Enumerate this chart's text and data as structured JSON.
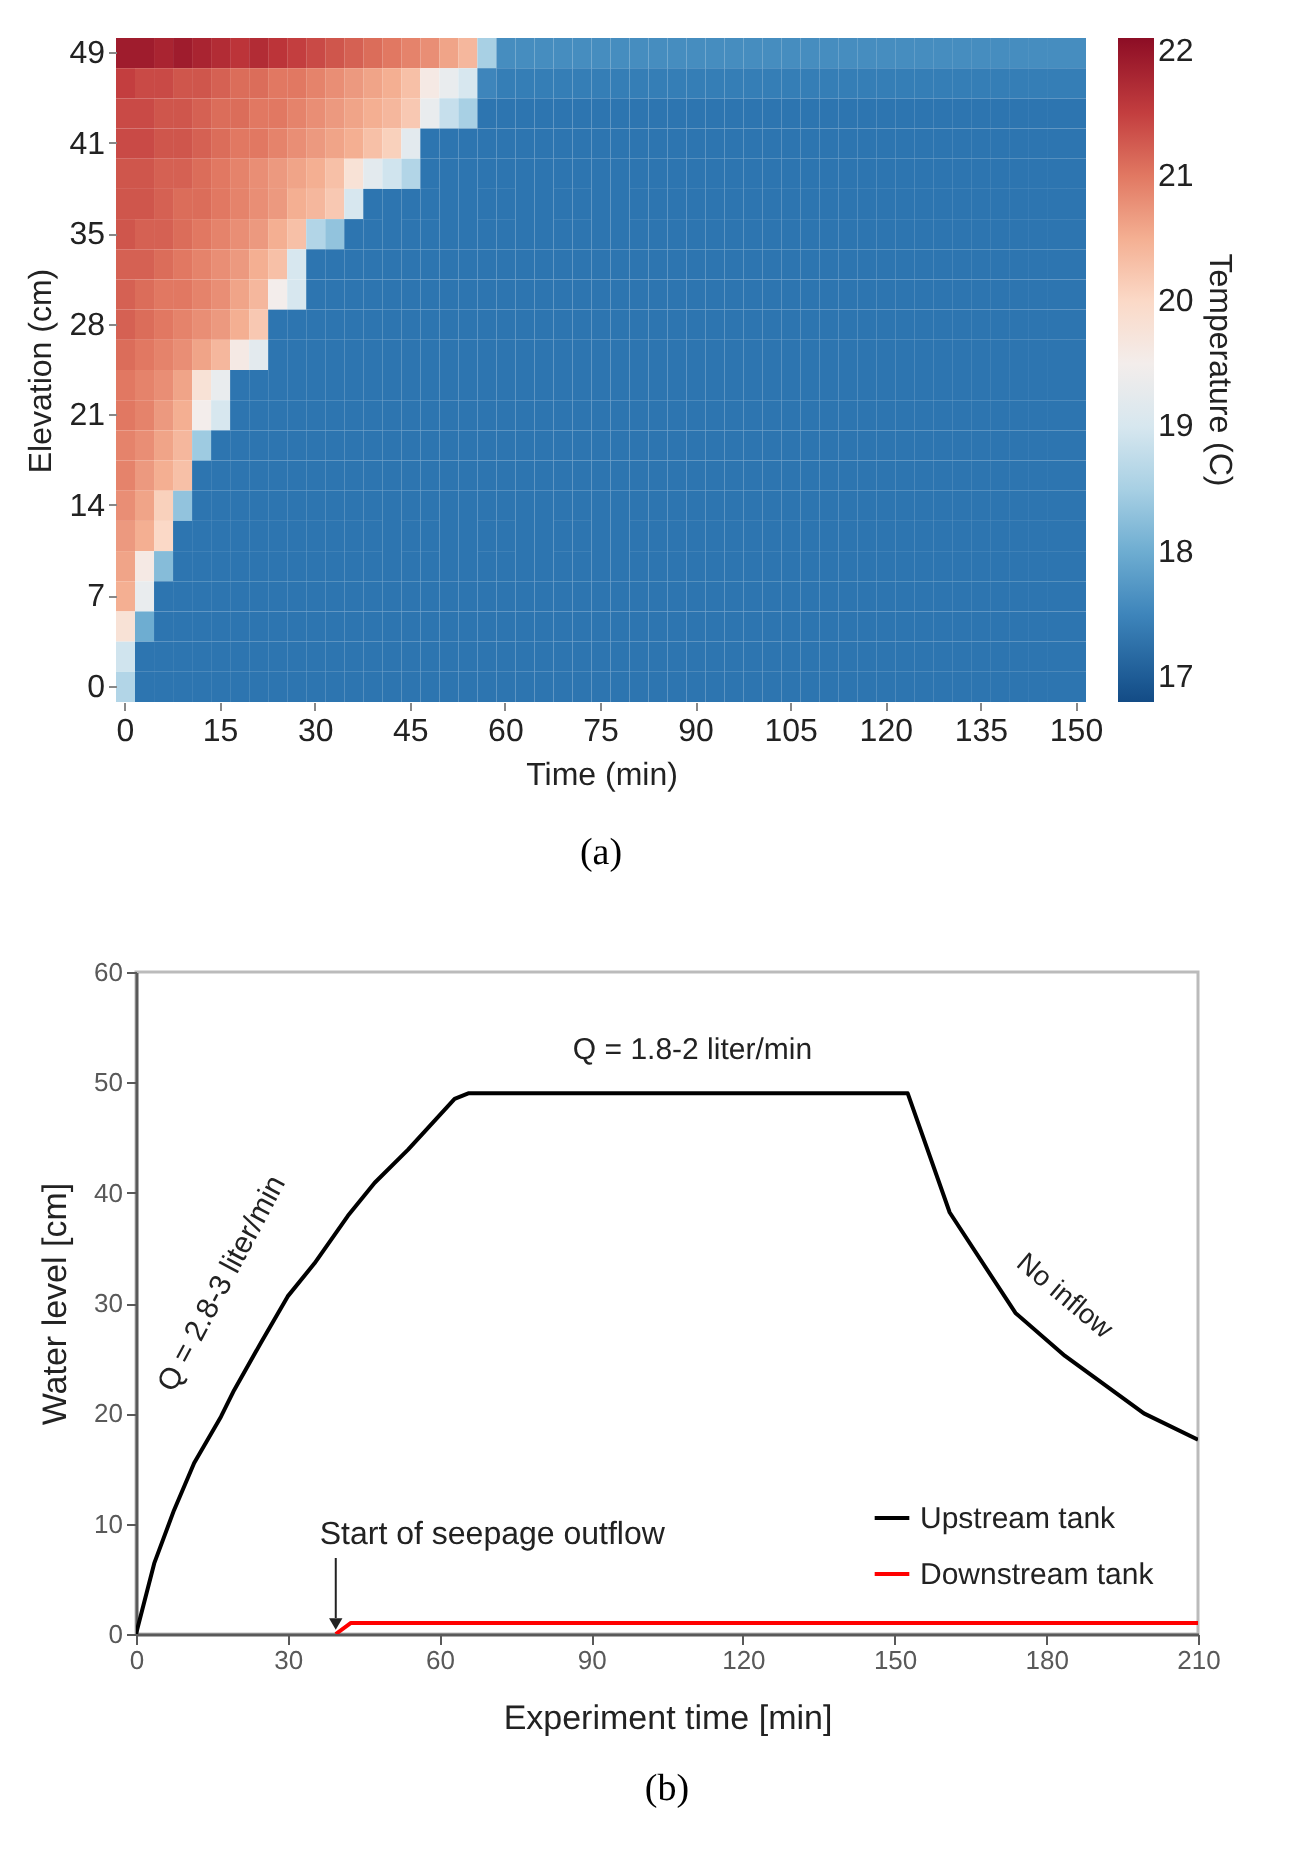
{
  "chart_data": [
    {
      "type": "heatmap",
      "title": "(a)",
      "xlabel": "Time (min)",
      "ylabel": "Elevation (cm)",
      "clabel": "Temperature (C)",
      "categories": [
        "0",
        null,
        null,
        null,
        null,
        "15",
        null,
        null,
        null,
        null,
        "30",
        null,
        null,
        null,
        null,
        "45",
        null,
        null,
        null,
        null,
        "60",
        null,
        null,
        null,
        null,
        "75",
        null,
        null,
        null,
        null,
        "90",
        null,
        null,
        null,
        null,
        "105",
        null,
        null,
        null,
        null,
        "120",
        null,
        null,
        null,
        null,
        "135",
        null,
        null,
        null,
        null,
        "150"
      ],
      "y_categories": [
        "49",
        null,
        null,
        "41",
        null,
        null,
        "35",
        null,
        null,
        "28",
        null,
        null,
        "21",
        null,
        null,
        "14",
        null,
        null,
        "7",
        null,
        null,
        "0"
      ],
      "clim": [
        16.8,
        22.1
      ],
      "cticks": [
        17,
        18,
        19,
        20,
        21,
        22
      ],
      "cells": [
        [
          21.9,
          21.9,
          21.8,
          21.9,
          21.8,
          21.7,
          21.6,
          21.7,
          21.6,
          21.5,
          21.4,
          21.3,
          21.2,
          21.1,
          21.0,
          20.9,
          20.8,
          20.6,
          20.4,
          18.5,
          17.6,
          17.6,
          17.6,
          17.6,
          17.6,
          17.6,
          17.6,
          17.6,
          17.6,
          17.6,
          17.6,
          17.6,
          17.6,
          17.6,
          17.6,
          17.6,
          17.6,
          17.6,
          17.6,
          17.6,
          17.6,
          17.6,
          17.6,
          17.6,
          17.6,
          17.6,
          17.6,
          17.6,
          17.6,
          17.6,
          17.6
        ],
        [
          21.5,
          21.4,
          21.4,
          21.3,
          21.3,
          21.2,
          21.1,
          21.1,
          21.0,
          21.0,
          20.9,
          20.8,
          20.7,
          20.6,
          20.5,
          20.3,
          19.6,
          19.3,
          19.0,
          17.5,
          17.4,
          17.4,
          17.4,
          17.4,
          17.4,
          17.4,
          17.4,
          17.4,
          17.4,
          17.4,
          17.4,
          17.4,
          17.4,
          17.4,
          17.4,
          17.4,
          17.4,
          17.4,
          17.4,
          17.4,
          17.4,
          17.4,
          17.4,
          17.4,
          17.4,
          17.4,
          17.4,
          17.4,
          17.4,
          17.4,
          17.4
        ],
        [
          21.4,
          21.4,
          21.3,
          21.3,
          21.2,
          21.1,
          21.1,
          21.0,
          21.0,
          20.9,
          20.8,
          20.7,
          20.6,
          20.5,
          20.4,
          20.2,
          19.3,
          18.8,
          18.5,
          17.3,
          17.3,
          17.3,
          17.3,
          17.3,
          17.3,
          17.3,
          17.3,
          17.3,
          17.3,
          17.3,
          17.3,
          17.3,
          17.3,
          17.3,
          17.3,
          17.3,
          17.3,
          17.3,
          17.3,
          17.3,
          17.3,
          17.3,
          17.3,
          17.3,
          17.3,
          17.3,
          17.3,
          17.3,
          17.3,
          17.3,
          17.3
        ],
        [
          21.4,
          21.4,
          21.3,
          21.3,
          21.2,
          21.1,
          21.0,
          21.0,
          20.9,
          20.8,
          20.7,
          20.6,
          20.5,
          20.3,
          20.1,
          19.2,
          17.3,
          17.3,
          17.3,
          17.3,
          17.3,
          17.3,
          17.3,
          17.3,
          17.3,
          17.3,
          17.3,
          17.3,
          17.3,
          17.3,
          17.3,
          17.3,
          17.3,
          17.3,
          17.3,
          17.3,
          17.3,
          17.3,
          17.3,
          17.3,
          17.3,
          17.3,
          17.3,
          17.3,
          17.3,
          17.3,
          17.3,
          17.3,
          17.3,
          17.3,
          17.3
        ],
        [
          21.3,
          21.3,
          21.2,
          21.2,
          21.1,
          21.0,
          20.9,
          20.8,
          20.7,
          20.6,
          20.5,
          20.3,
          19.8,
          19.2,
          18.9,
          18.6,
          17.3,
          17.3,
          17.3,
          17.3,
          17.3,
          17.3,
          17.3,
          17.3,
          17.3,
          17.3,
          17.3,
          17.3,
          17.3,
          17.3,
          17.3,
          17.3,
          17.3,
          17.3,
          17.3,
          17.3,
          17.3,
          17.3,
          17.3,
          17.3,
          17.3,
          17.3,
          17.3,
          17.3,
          17.3,
          17.3,
          17.3,
          17.3,
          17.3,
          17.3,
          17.3
        ],
        [
          21.3,
          21.3,
          21.2,
          21.1,
          21.1,
          21.0,
          20.9,
          20.8,
          20.7,
          20.5,
          20.4,
          20.2,
          19.0,
          17.3,
          17.3,
          17.3,
          17.3,
          17.3,
          17.3,
          17.3,
          17.3,
          17.3,
          17.3,
          17.3,
          17.3,
          17.3,
          17.3,
          17.3,
          17.3,
          17.3,
          17.3,
          17.3,
          17.3,
          17.3,
          17.3,
          17.3,
          17.3,
          17.3,
          17.3,
          17.3,
          17.3,
          17.3,
          17.3,
          17.3,
          17.3,
          17.3,
          17.3,
          17.3,
          17.3,
          17.3,
          17.3
        ],
        [
          21.3,
          21.2,
          21.2,
          21.1,
          21.0,
          20.9,
          20.8,
          20.7,
          20.5,
          20.3,
          18.6,
          18.3,
          17.3,
          17.3,
          17.3,
          17.3,
          17.3,
          17.3,
          17.3,
          17.3,
          17.3,
          17.3,
          17.3,
          17.3,
          17.3,
          17.3,
          17.3,
          17.3,
          17.3,
          17.3,
          17.3,
          17.3,
          17.3,
          17.3,
          17.3,
          17.3,
          17.3,
          17.3,
          17.3,
          17.3,
          17.3,
          17.3,
          17.3,
          17.3,
          17.3,
          17.3,
          17.3,
          17.3,
          17.3,
          17.3,
          17.3
        ],
        [
          21.2,
          21.2,
          21.1,
          21.0,
          20.9,
          20.8,
          20.7,
          20.5,
          20.3,
          19.0,
          17.3,
          17.3,
          17.3,
          17.3,
          17.3,
          17.3,
          17.3,
          17.3,
          17.3,
          17.3,
          17.3,
          17.3,
          17.3,
          17.3,
          17.3,
          17.3,
          17.3,
          17.3,
          17.3,
          17.3,
          17.3,
          17.3,
          17.3,
          17.3,
          17.3,
          17.3,
          17.3,
          17.3,
          17.3,
          17.3,
          17.3,
          17.3,
          17.3,
          17.3,
          17.3,
          17.3,
          17.3,
          17.3,
          17.3,
          17.3,
          17.3
        ],
        [
          21.2,
          21.1,
          21.0,
          21.0,
          20.9,
          20.8,
          20.6,
          20.4,
          19.5,
          19.0,
          17.3,
          17.3,
          17.3,
          17.3,
          17.3,
          17.3,
          17.3,
          17.3,
          17.3,
          17.3,
          17.3,
          17.3,
          17.3,
          17.3,
          17.3,
          17.3,
          17.3,
          17.3,
          17.3,
          17.3,
          17.3,
          17.3,
          17.3,
          17.3,
          17.3,
          17.3,
          17.3,
          17.3,
          17.3,
          17.3,
          17.3,
          17.3,
          17.3,
          17.3,
          17.3,
          17.3,
          17.3,
          17.3,
          17.3,
          17.3,
          17.3
        ],
        [
          21.2,
          21.1,
          21.0,
          20.9,
          20.8,
          20.7,
          20.5,
          20.2,
          17.3,
          17.3,
          17.3,
          17.3,
          17.3,
          17.3,
          17.3,
          17.3,
          17.3,
          17.3,
          17.3,
          17.3,
          17.3,
          17.3,
          17.3,
          17.3,
          17.3,
          17.3,
          17.3,
          17.3,
          17.3,
          17.3,
          17.3,
          17.3,
          17.3,
          17.3,
          17.3,
          17.3,
          17.3,
          17.3,
          17.3,
          17.3,
          17.3,
          17.3,
          17.3,
          17.3,
          17.3,
          17.3,
          17.3,
          17.3,
          17.3,
          17.3,
          17.3
        ],
        [
          21.1,
          21.0,
          20.9,
          20.8,
          20.6,
          20.4,
          19.6,
          19.2,
          17.3,
          17.3,
          17.3,
          17.3,
          17.3,
          17.3,
          17.3,
          17.3,
          17.3,
          17.3,
          17.3,
          17.3,
          17.3,
          17.3,
          17.3,
          17.3,
          17.3,
          17.3,
          17.3,
          17.3,
          17.3,
          17.3,
          17.3,
          17.3,
          17.3,
          17.3,
          17.3,
          17.3,
          17.3,
          17.3,
          17.3,
          17.3,
          17.3,
          17.3,
          17.3,
          17.3,
          17.3,
          17.3,
          17.3,
          17.3,
          17.3,
          17.3,
          17.3
        ],
        [
          21.0,
          20.9,
          20.8,
          20.6,
          19.8,
          19.3,
          17.3,
          17.3,
          17.3,
          17.3,
          17.3,
          17.3,
          17.3,
          17.3,
          17.3,
          17.3,
          17.3,
          17.3,
          17.3,
          17.3,
          17.3,
          17.3,
          17.3,
          17.3,
          17.3,
          17.3,
          17.3,
          17.3,
          17.3,
          17.3,
          17.3,
          17.3,
          17.3,
          17.3,
          17.3,
          17.3,
          17.3,
          17.3,
          17.3,
          17.3,
          17.3,
          17.3,
          17.3,
          17.3,
          17.3,
          17.3,
          17.3,
          17.3,
          17.3,
          17.3,
          17.3
        ],
        [
          21.0,
          20.9,
          20.7,
          20.5,
          19.5,
          19.0,
          17.3,
          17.3,
          17.3,
          17.3,
          17.3,
          17.3,
          17.3,
          17.3,
          17.3,
          17.3,
          17.3,
          17.3,
          17.3,
          17.3,
          17.3,
          17.3,
          17.3,
          17.3,
          17.3,
          17.3,
          17.3,
          17.3,
          17.3,
          17.3,
          17.3,
          17.3,
          17.3,
          17.3,
          17.3,
          17.3,
          17.3,
          17.3,
          17.3,
          17.3,
          17.3,
          17.3,
          17.3,
          17.3,
          17.3,
          17.3,
          17.3,
          17.3,
          17.3,
          17.3,
          17.3
        ],
        [
          20.9,
          20.8,
          20.6,
          20.4,
          18.4,
          17.3,
          17.3,
          17.3,
          17.3,
          17.3,
          17.3,
          17.3,
          17.3,
          17.3,
          17.3,
          17.3,
          17.3,
          17.3,
          17.3,
          17.3,
          17.3,
          17.3,
          17.3,
          17.3,
          17.3,
          17.3,
          17.3,
          17.3,
          17.3,
          17.3,
          17.3,
          17.3,
          17.3,
          17.3,
          17.3,
          17.3,
          17.3,
          17.3,
          17.3,
          17.3,
          17.3,
          17.3,
          17.3,
          17.3,
          17.3,
          17.3,
          17.3,
          17.3,
          17.3,
          17.3,
          17.3
        ],
        [
          20.9,
          20.7,
          20.5,
          20.3,
          17.3,
          17.3,
          17.3,
          17.3,
          17.3,
          17.3,
          17.3,
          17.3,
          17.3,
          17.3,
          17.3,
          17.3,
          17.3,
          17.3,
          17.3,
          17.3,
          17.3,
          17.3,
          17.3,
          17.3,
          17.3,
          17.3,
          17.3,
          17.3,
          17.3,
          17.3,
          17.3,
          17.3,
          17.3,
          17.3,
          17.3,
          17.3,
          17.3,
          17.3,
          17.3,
          17.3,
          17.3,
          17.3,
          17.3,
          17.3,
          17.3,
          17.3,
          17.3,
          17.3,
          17.3,
          17.3,
          17.3
        ],
        [
          20.8,
          20.6,
          20.1,
          18.3,
          17.3,
          17.3,
          17.3,
          17.3,
          17.3,
          17.3,
          17.3,
          17.3,
          17.3,
          17.3,
          17.3,
          17.3,
          17.3,
          17.3,
          17.3,
          17.3,
          17.3,
          17.3,
          17.3,
          17.3,
          17.3,
          17.3,
          17.3,
          17.3,
          17.3,
          17.3,
          17.3,
          17.3,
          17.3,
          17.3,
          17.3,
          17.3,
          17.3,
          17.3,
          17.3,
          17.3,
          17.3,
          17.3,
          17.3,
          17.3,
          17.3,
          17.3,
          17.3,
          17.3,
          17.3,
          17.3,
          17.3
        ],
        [
          20.7,
          20.5,
          20.0,
          17.3,
          17.3,
          17.3,
          17.3,
          17.3,
          17.3,
          17.3,
          17.3,
          17.3,
          17.3,
          17.3,
          17.3,
          17.3,
          17.3,
          17.3,
          17.3,
          17.3,
          17.3,
          17.3,
          17.3,
          17.3,
          17.3,
          17.3,
          17.3,
          17.3,
          17.3,
          17.3,
          17.3,
          17.3,
          17.3,
          17.3,
          17.3,
          17.3,
          17.3,
          17.3,
          17.3,
          17.3,
          17.3,
          17.3,
          17.3,
          17.3,
          17.3,
          17.3,
          17.3,
          17.3,
          17.3,
          17.3,
          17.3
        ],
        [
          20.6,
          19.6,
          18.2,
          17.3,
          17.3,
          17.3,
          17.3,
          17.3,
          17.3,
          17.3,
          17.3,
          17.3,
          17.3,
          17.3,
          17.3,
          17.3,
          17.3,
          17.3,
          17.3,
          17.3,
          17.3,
          17.3,
          17.3,
          17.3,
          17.3,
          17.3,
          17.3,
          17.3,
          17.3,
          17.3,
          17.3,
          17.3,
          17.3,
          17.3,
          17.3,
          17.3,
          17.3,
          17.3,
          17.3,
          17.3,
          17.3,
          17.3,
          17.3,
          17.3,
          17.3,
          17.3,
          17.3,
          17.3,
          17.3,
          17.3,
          17.3
        ],
        [
          20.5,
          19.3,
          17.3,
          17.3,
          17.3,
          17.3,
          17.3,
          17.3,
          17.3,
          17.3,
          17.3,
          17.3,
          17.3,
          17.3,
          17.3,
          17.3,
          17.3,
          17.3,
          17.3,
          17.3,
          17.3,
          17.3,
          17.3,
          17.3,
          17.3,
          17.3,
          17.3,
          17.3,
          17.3,
          17.3,
          17.3,
          17.3,
          17.3,
          17.3,
          17.3,
          17.3,
          17.3,
          17.3,
          17.3,
          17.3,
          17.3,
          17.3,
          17.3,
          17.3,
          17.3,
          17.3,
          17.3,
          17.3,
          17.3,
          17.3,
          17.3
        ],
        [
          19.8,
          18.0,
          17.3,
          17.3,
          17.3,
          17.3,
          17.3,
          17.3,
          17.3,
          17.3,
          17.3,
          17.3,
          17.3,
          17.3,
          17.3,
          17.3,
          17.3,
          17.3,
          17.3,
          17.3,
          17.3,
          17.3,
          17.3,
          17.3,
          17.3,
          17.3,
          17.3,
          17.3,
          17.3,
          17.3,
          17.3,
          17.3,
          17.3,
          17.3,
          17.3,
          17.3,
          17.3,
          17.3,
          17.3,
          17.3,
          17.3,
          17.3,
          17.3,
          17.3,
          17.3,
          17.3,
          17.3,
          17.3,
          17.3,
          17.3,
          17.3
        ],
        [
          18.9,
          17.3,
          17.3,
          17.3,
          17.3,
          17.3,
          17.3,
          17.3,
          17.3,
          17.3,
          17.3,
          17.3,
          17.3,
          17.3,
          17.3,
          17.3,
          17.3,
          17.3,
          17.3,
          17.3,
          17.3,
          17.3,
          17.3,
          17.3,
          17.3,
          17.3,
          17.3,
          17.3,
          17.3,
          17.3,
          17.3,
          17.3,
          17.3,
          17.3,
          17.3,
          17.3,
          17.3,
          17.3,
          17.3,
          17.3,
          17.3,
          17.3,
          17.3,
          17.3,
          17.3,
          17.3,
          17.3,
          17.3,
          17.3,
          17.3,
          17.3
        ],
        [
          18.6,
          17.3,
          17.3,
          17.3,
          17.3,
          17.3,
          17.3,
          17.3,
          17.3,
          17.3,
          17.3,
          17.3,
          17.3,
          17.3,
          17.3,
          17.3,
          17.3,
          17.3,
          17.3,
          17.3,
          17.3,
          17.3,
          17.3,
          17.3,
          17.3,
          17.3,
          17.3,
          17.3,
          17.3,
          17.3,
          17.3,
          17.3,
          17.3,
          17.3,
          17.3,
          17.3,
          17.3,
          17.3,
          17.3,
          17.3,
          17.3,
          17.3,
          17.3,
          17.3,
          17.3,
          17.3,
          17.3,
          17.3,
          17.3,
          17.3,
          17.3
        ]
      ]
    },
    {
      "type": "line",
      "title": "(b)",
      "xlabel": "Experiment time [min]",
      "ylabel": "Water level [cm]",
      "xlim": [
        0,
        210
      ],
      "xticks": [
        0,
        30,
        60,
        90,
        120,
        150,
        180,
        210
      ],
      "ylim": [
        0,
        60
      ],
      "yticks": [
        0,
        10,
        20,
        30,
        40,
        50,
        60
      ],
      "legend": "bottom right",
      "series": [
        {
          "name": "Upstream tank",
          "color": "#000000",
          "x": [
            0,
            3.6,
            7.5,
            11.5,
            16.8,
            19.4,
            24.7,
            30,
            35.3,
            41.9,
            47.2,
            53.8,
            63,
            65.7,
            152.6,
            160.9,
            173.9,
            183.7,
            199.3,
            210
          ],
          "values": [
            0,
            6.4,
            11.2,
            15.5,
            19.7,
            22.1,
            26.4,
            30.6,
            33.6,
            37.9,
            40.9,
            43.9,
            48.5,
            49,
            49,
            38.2,
            29.1,
            25.2,
            20,
            17.6
          ]
        },
        {
          "name": "Downstream tank",
          "color": "#ff0000",
          "x": [
            39.5,
            42.5,
            210
          ],
          "values": [
            0,
            1,
            1
          ]
        }
      ],
      "annotations": [
        "Q = 2.8-3 liter/min",
        "Q = 1.8-2 liter/min",
        "No inflow",
        {
          "text": "Start of seepage outflow",
          "x": 39.5,
          "y": 0
        }
      ]
    }
  ]
}
